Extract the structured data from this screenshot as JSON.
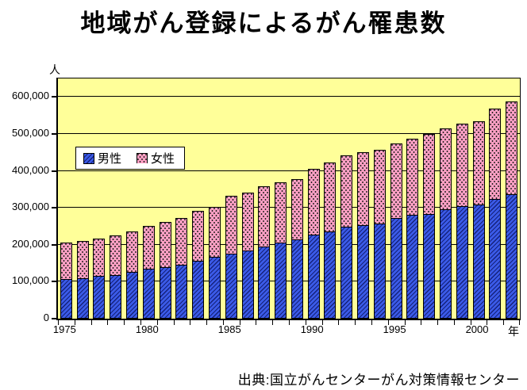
{
  "title": "地域がん登録によるがん罹患数",
  "y_unit": "人",
  "x_unit": "年",
  "source": "出典:国立がんセンターがん対策情報センター",
  "legend": {
    "items": [
      {
        "label": "男性"
      },
      {
        "label": "女性"
      }
    ]
  },
  "chart_data": {
    "type": "bar",
    "stacked": true,
    "title": "地域がん登録によるがん罹患数",
    "ylabel": "人",
    "xlabel": "年",
    "ylim": [
      0,
      650000
    ],
    "ytick_interval": 100000,
    "ytick_labels": [
      "0",
      "100,000",
      "200,000",
      "300,000",
      "400,000",
      "500,000",
      "600,000"
    ],
    "xtick_labels": [
      "1975",
      "1980",
      "1985",
      "1990",
      "1995",
      "2000"
    ],
    "grid": "horizontal",
    "legend_position": "inside-upper-left",
    "plot_background": "#ffff99",
    "categories": [
      1975,
      1976,
      1977,
      1978,
      1979,
      1980,
      1981,
      1982,
      1983,
      1984,
      1985,
      1986,
      1987,
      1988,
      1989,
      1990,
      1991,
      1992,
      1993,
      1994,
      1995,
      1996,
      1997,
      1998,
      1999,
      2000,
      2001,
      2002
    ],
    "series": [
      {
        "name": "男性",
        "color": "#3b5be8",
        "pattern": "diagonal-hatch",
        "values": [
          107000,
          110000,
          115000,
          119000,
          127000,
          135000,
          140000,
          145000,
          157000,
          167000,
          176000,
          185000,
          195000,
          206000,
          214000,
          227000,
          236000,
          248000,
          254000,
          258000,
          272000,
          281000,
          284000,
          296000,
          304000,
          309000,
          324000,
          336000
        ]
      },
      {
        "name": "女性",
        "color": "#ffa0c4",
        "pattern": "dots",
        "values": [
          100000,
          100000,
          101000,
          106000,
          110000,
          117000,
          121000,
          128000,
          134000,
          136000,
          157000,
          157000,
          163000,
          163000,
          164000,
          178000,
          186000,
          194000,
          196000,
          198000,
          202000,
          205000,
          215000,
          218000,
          223000,
          226000,
          244000,
          251000
        ]
      }
    ]
  }
}
